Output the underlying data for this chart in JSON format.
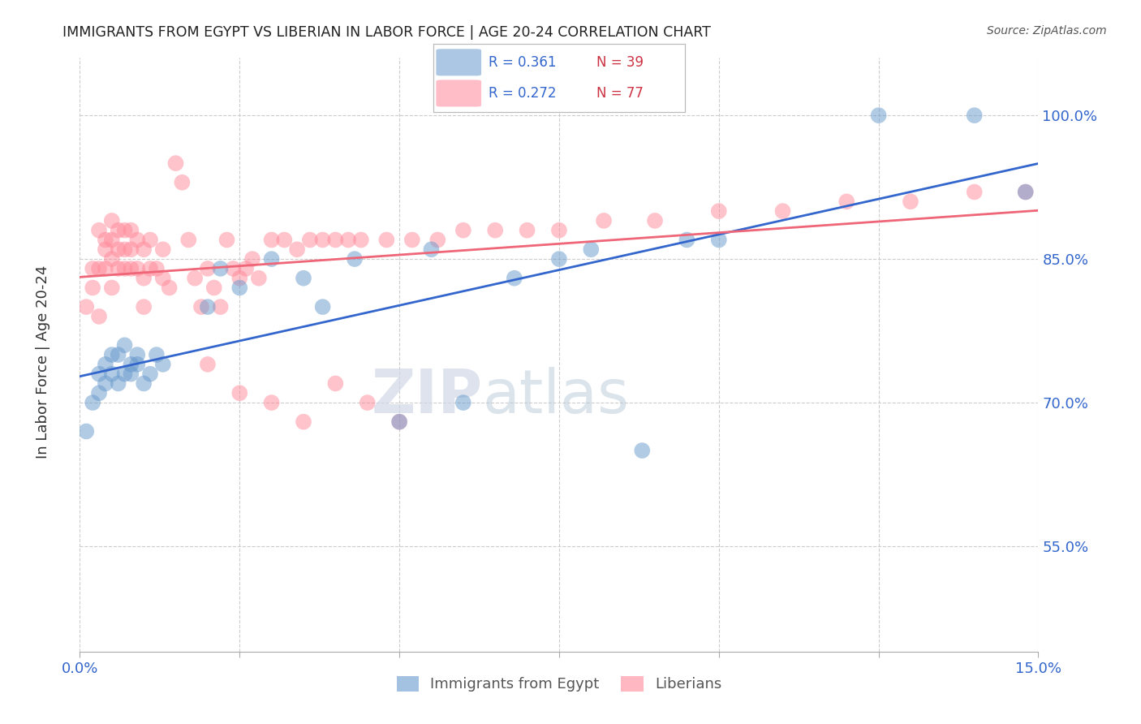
{
  "title": "IMMIGRANTS FROM EGYPT VS LIBERIAN IN LABOR FORCE | AGE 20-24 CORRELATION CHART",
  "source": "Source: ZipAtlas.com",
  "ylabel": "In Labor Force | Age 20-24",
  "xlim": [
    0.0,
    0.15
  ],
  "ylim": [
    0.44,
    1.06
  ],
  "xticks": [
    0.0,
    0.025,
    0.05,
    0.075,
    0.1,
    0.125,
    0.15
  ],
  "xtick_labels": [
    "0.0%",
    "",
    "",
    "",
    "",
    "",
    "15.0%"
  ],
  "yticks": [
    0.55,
    0.7,
    0.85,
    1.0
  ],
  "ytick_labels": [
    "55.0%",
    "70.0%",
    "85.0%",
    "100.0%"
  ],
  "egypt_color": "#6699cc",
  "liberia_color": "#ff8899",
  "egypt_line_color": "#3366cc",
  "liberia_line_color": "#ee6677",
  "watermark_zip": "ZIP",
  "watermark_atlas": "atlas",
  "egypt_x": [
    0.001,
    0.002,
    0.003,
    0.003,
    0.004,
    0.004,
    0.005,
    0.005,
    0.006,
    0.006,
    0.007,
    0.007,
    0.008,
    0.008,
    0.009,
    0.009,
    0.01,
    0.011,
    0.012,
    0.013,
    0.02,
    0.022,
    0.025,
    0.03,
    0.035,
    0.038,
    0.043,
    0.05,
    0.055,
    0.06,
    0.068,
    0.075,
    0.08,
    0.088,
    0.095,
    0.1,
    0.125,
    0.14,
    0.148
  ],
  "egypt_y": [
    0.67,
    0.7,
    0.71,
    0.73,
    0.72,
    0.74,
    0.73,
    0.75,
    0.72,
    0.75,
    0.73,
    0.76,
    0.74,
    0.73,
    0.75,
    0.74,
    0.72,
    0.73,
    0.75,
    0.74,
    0.8,
    0.84,
    0.82,
    0.85,
    0.83,
    0.8,
    0.85,
    0.68,
    0.86,
    0.7,
    0.83,
    0.85,
    0.86,
    0.65,
    0.87,
    0.87,
    1.0,
    1.0,
    0.92
  ],
  "liberia_x": [
    0.001,
    0.002,
    0.002,
    0.003,
    0.003,
    0.003,
    0.004,
    0.004,
    0.004,
    0.005,
    0.005,
    0.005,
    0.005,
    0.006,
    0.006,
    0.006,
    0.007,
    0.007,
    0.007,
    0.008,
    0.008,
    0.008,
    0.009,
    0.009,
    0.01,
    0.01,
    0.01,
    0.011,
    0.011,
    0.012,
    0.013,
    0.013,
    0.014,
    0.015,
    0.016,
    0.017,
    0.018,
    0.019,
    0.02,
    0.021,
    0.022,
    0.023,
    0.024,
    0.025,
    0.026,
    0.027,
    0.028,
    0.03,
    0.032,
    0.034,
    0.036,
    0.038,
    0.04,
    0.042,
    0.044,
    0.048,
    0.052,
    0.056,
    0.06,
    0.065,
    0.07,
    0.075,
    0.082,
    0.09,
    0.1,
    0.11,
    0.12,
    0.13,
    0.14,
    0.148,
    0.02,
    0.025,
    0.03,
    0.035,
    0.04,
    0.045,
    0.05
  ],
  "liberia_y": [
    0.8,
    0.82,
    0.84,
    0.79,
    0.84,
    0.88,
    0.84,
    0.87,
    0.86,
    0.82,
    0.85,
    0.87,
    0.89,
    0.84,
    0.86,
    0.88,
    0.84,
    0.86,
    0.88,
    0.84,
    0.86,
    0.88,
    0.84,
    0.87,
    0.83,
    0.86,
    0.8,
    0.84,
    0.87,
    0.84,
    0.83,
    0.86,
    0.82,
    0.95,
    0.93,
    0.87,
    0.83,
    0.8,
    0.84,
    0.82,
    0.8,
    0.87,
    0.84,
    0.83,
    0.84,
    0.85,
    0.83,
    0.87,
    0.87,
    0.86,
    0.87,
    0.87,
    0.87,
    0.87,
    0.87,
    0.87,
    0.87,
    0.87,
    0.88,
    0.88,
    0.88,
    0.88,
    0.89,
    0.89,
    0.9,
    0.9,
    0.91,
    0.91,
    0.92,
    0.92,
    0.74,
    0.71,
    0.7,
    0.68,
    0.72,
    0.7,
    0.68
  ]
}
